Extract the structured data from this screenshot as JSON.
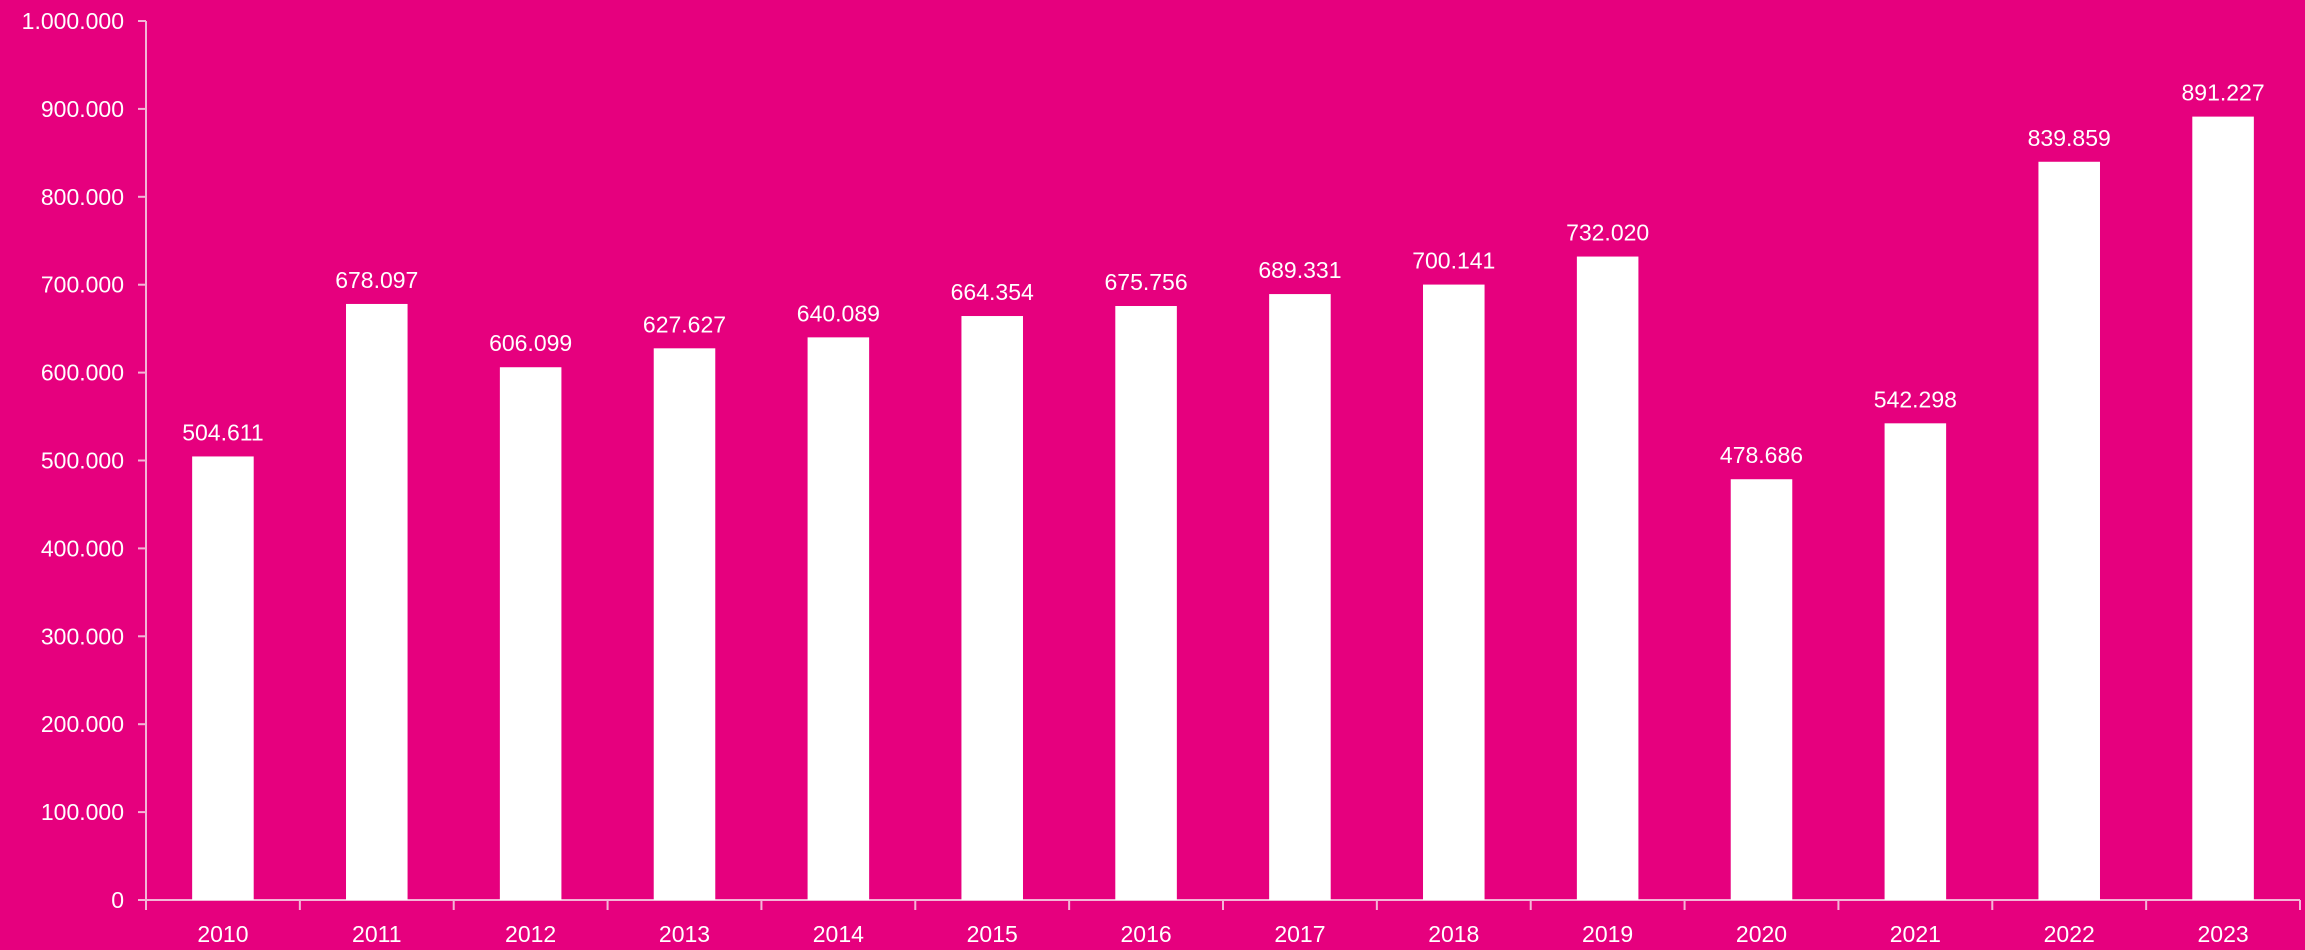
{
  "colors": {
    "background": "#E6007E",
    "bar": "#FFFFFF",
    "axis": "#F3B5D6",
    "text": "#FFFFFF"
  },
  "chart_data": {
    "type": "bar",
    "title": "",
    "xlabel": "",
    "ylabel": "",
    "categories": [
      "2010",
      "2011",
      "2012",
      "2013",
      "2014",
      "2015",
      "2016",
      "2017",
      "2018",
      "2019",
      "2020",
      "2021",
      "2022",
      "2023"
    ],
    "values": [
      504611,
      678097,
      606099,
      627627,
      640089,
      664354,
      675756,
      689331,
      700141,
      732020,
      478686,
      542298,
      839859,
      891227
    ],
    "value_labels": [
      "504.611",
      "678.097",
      "606.099",
      "627.627",
      "640.089",
      "664.354",
      "675.756",
      "689.331",
      "700.141",
      "732.020",
      "478.686",
      "542.298",
      "839.859",
      "891.227"
    ],
    "ylim": [
      0,
      1000000
    ],
    "y_ticks": [
      0,
      100000,
      200000,
      300000,
      400000,
      500000,
      600000,
      700000,
      800000,
      900000,
      1000000
    ],
    "y_tick_labels": [
      "0",
      "100.000",
      "200.000",
      "300.000",
      "400.000",
      "500.000",
      "600.000",
      "700.000",
      "800.000",
      "900.000",
      "1.000.000"
    ],
    "grid": false,
    "legend": "none"
  }
}
